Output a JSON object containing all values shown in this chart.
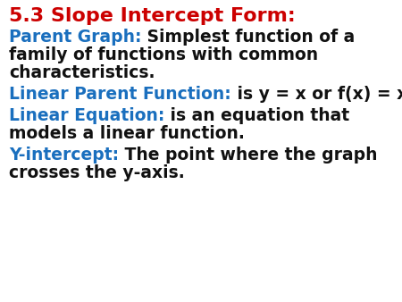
{
  "background_color": "#ffffff",
  "title": "5.3 Slope Intercept Form:",
  "title_color": "#cc0000",
  "title_fontsize": 16,
  "blue_color": "#1a6fbe",
  "black_color": "#111111",
  "main_fontsize": 13.5,
  "fig_width": 4.5,
  "fig_height": 3.38,
  "dpi": 100,
  "blocks": [
    {
      "label": "Parent Graph:",
      "rest_lines": [
        " Simplest function of a",
        "family of functions with common",
        "characteristics."
      ],
      "label_only_first": true
    },
    {
      "label": "Linear Parent Function:",
      "rest_lines": [
        " is y = x or f(x) = x."
      ],
      "label_only_first": true
    },
    {
      "label": "Linear Equation:",
      "rest_lines": [
        " is an equation that",
        "models a linear function."
      ],
      "label_only_first": true
    },
    {
      "label": "Y-intercept:",
      "rest_lines": [
        " The point where the graph",
        "crosses the y-axis."
      ],
      "label_only_first": true
    }
  ]
}
